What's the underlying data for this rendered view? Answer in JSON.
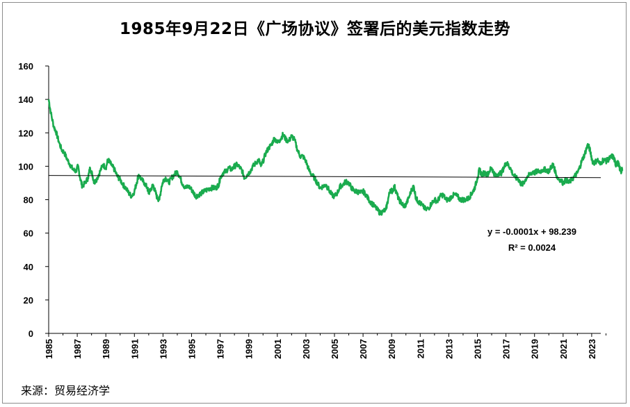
{
  "title": "1985年9月22日《广场协议》签署后的美元指数走势",
  "source": "来源：贸易经济学",
  "colors": {
    "series": "#1aab4e",
    "trend": "#000000",
    "axis": "#000000"
  },
  "chart_data": {
    "type": "line",
    "title": "1985年9月22日《广场协议》签署后的美元指数走势",
    "xlabel": "",
    "ylabel": "",
    "xlim": [
      1985.0,
      2024.7
    ],
    "ylim": [
      0,
      160
    ],
    "y_ticks": [
      0,
      20,
      40,
      60,
      80,
      100,
      120,
      140,
      160
    ],
    "x_ticks": [
      "1985",
      "1987",
      "1989",
      "1991",
      "1993",
      "1995",
      "1997",
      "1999",
      "2001",
      "2003",
      "2005",
      "2007",
      "2009",
      "2011",
      "2013",
      "2015",
      "2017",
      "2019",
      "2021",
      "2023"
    ],
    "grid": false,
    "legend": "none",
    "series": [
      {
        "name": "",
        "points": [
          [
            1985.0,
            140
          ],
          [
            1985.15,
            132
          ],
          [
            1985.35,
            124
          ],
          [
            1985.5,
            121
          ],
          [
            1985.7,
            115
          ],
          [
            1985.9,
            110
          ],
          [
            1986.1,
            108
          ],
          [
            1986.3,
            104
          ],
          [
            1986.5,
            101
          ],
          [
            1986.7,
            98
          ],
          [
            1986.9,
            97
          ],
          [
            1987.05,
            100
          ],
          [
            1987.2,
            93
          ],
          [
            1987.35,
            88
          ],
          [
            1987.55,
            90
          ],
          [
            1987.75,
            93
          ],
          [
            1987.9,
            99
          ],
          [
            1988.05,
            95
          ],
          [
            1988.2,
            90
          ],
          [
            1988.4,
            93
          ],
          [
            1988.6,
            97
          ],
          [
            1988.8,
            101
          ],
          [
            1989.0,
            99
          ],
          [
            1989.15,
            104
          ],
          [
            1989.3,
            102
          ],
          [
            1989.45,
            100
          ],
          [
            1989.6,
            98
          ],
          [
            1989.8,
            94
          ],
          [
            1990.0,
            92
          ],
          [
            1990.2,
            89
          ],
          [
            1990.4,
            87
          ],
          [
            1990.6,
            84
          ],
          [
            1990.8,
            82
          ],
          [
            1991.0,
            85
          ],
          [
            1991.15,
            90
          ],
          [
            1991.3,
            95
          ],
          [
            1991.5,
            92
          ],
          [
            1991.7,
            90
          ],
          [
            1991.9,
            87
          ],
          [
            1992.0,
            84
          ],
          [
            1992.15,
            86
          ],
          [
            1992.3,
            89
          ],
          [
            1992.45,
            85
          ],
          [
            1992.6,
            81
          ],
          [
            1992.75,
            80
          ],
          [
            1992.9,
            88
          ],
          [
            1993.05,
            92
          ],
          [
            1993.2,
            93
          ],
          [
            1993.4,
            90
          ],
          [
            1993.6,
            93
          ],
          [
            1993.8,
            95
          ],
          [
            1994.0,
            97
          ],
          [
            1994.2,
            93
          ],
          [
            1994.4,
            89
          ],
          [
            1994.6,
            87
          ],
          [
            1994.8,
            88
          ],
          [
            1995.0,
            86
          ],
          [
            1995.15,
            84
          ],
          [
            1995.3,
            82
          ],
          [
            1995.5,
            83
          ],
          [
            1995.7,
            84
          ],
          [
            1995.9,
            85
          ],
          [
            1996.1,
            86
          ],
          [
            1996.3,
            87
          ],
          [
            1996.5,
            87
          ],
          [
            1996.7,
            87
          ],
          [
            1996.9,
            89
          ],
          [
            1997.0,
            93
          ],
          [
            1997.2,
            96
          ],
          [
            1997.4,
            97
          ],
          [
            1997.6,
            99
          ],
          [
            1997.8,
            98
          ],
          [
            1998.0,
            100
          ],
          [
            1998.2,
            101
          ],
          [
            1998.4,
            99
          ],
          [
            1998.55,
            97
          ],
          [
            1998.7,
            93
          ],
          [
            1998.9,
            95
          ],
          [
            1999.1,
            97
          ],
          [
            1999.3,
            100
          ],
          [
            1999.5,
            102
          ],
          [
            1999.7,
            104
          ],
          [
            1999.85,
            100
          ],
          [
            2000.0,
            103
          ],
          [
            2000.2,
            108
          ],
          [
            2000.4,
            111
          ],
          [
            2000.6,
            113
          ],
          [
            2000.8,
            117
          ],
          [
            2001.0,
            114
          ],
          [
            2001.2,
            116
          ],
          [
            2001.4,
            119
          ],
          [
            2001.6,
            116
          ],
          [
            2001.8,
            115
          ],
          [
            2002.0,
            118
          ],
          [
            2002.2,
            116
          ],
          [
            2002.4,
            110
          ],
          [
            2002.6,
            106
          ],
          [
            2002.8,
            106
          ],
          [
            2003.0,
            103
          ],
          [
            2003.2,
            98
          ],
          [
            2003.4,
            95
          ],
          [
            2003.6,
            93
          ],
          [
            2003.8,
            90
          ],
          [
            2004.0,
            87
          ],
          [
            2004.2,
            88
          ],
          [
            2004.4,
            89
          ],
          [
            2004.6,
            86
          ],
          [
            2004.8,
            83
          ],
          [
            2005.0,
            82
          ],
          [
            2005.2,
            84
          ],
          [
            2005.4,
            88
          ],
          [
            2005.6,
            89
          ],
          [
            2005.8,
            91
          ],
          [
            2006.0,
            90
          ],
          [
            2006.2,
            87
          ],
          [
            2006.4,
            85
          ],
          [
            2006.6,
            85
          ],
          [
            2006.8,
            84
          ],
          [
            2007.0,
            85
          ],
          [
            2007.2,
            83
          ],
          [
            2007.4,
            80
          ],
          [
            2007.6,
            78
          ],
          [
            2007.8,
            76
          ],
          [
            2008.0,
            74
          ],
          [
            2008.2,
            72
          ],
          [
            2008.4,
            73
          ],
          [
            2008.6,
            74
          ],
          [
            2008.75,
            80
          ],
          [
            2008.9,
            86
          ],
          [
            2009.05,
            85
          ],
          [
            2009.2,
            88
          ],
          [
            2009.35,
            84
          ],
          [
            2009.5,
            80
          ],
          [
            2009.7,
            78
          ],
          [
            2009.85,
            76
          ],
          [
            2010.0,
            77
          ],
          [
            2010.2,
            81
          ],
          [
            2010.4,
            86
          ],
          [
            2010.55,
            88
          ],
          [
            2010.7,
            81
          ],
          [
            2010.85,
            79
          ],
          [
            2011.0,
            78
          ],
          [
            2011.2,
            76
          ],
          [
            2011.4,
            74
          ],
          [
            2011.6,
            75
          ],
          [
            2011.8,
            78
          ],
          [
            2012.0,
            80
          ],
          [
            2012.2,
            79
          ],
          [
            2012.4,
            82
          ],
          [
            2012.6,
            83
          ],
          [
            2012.8,
            80
          ],
          [
            2013.0,
            80
          ],
          [
            2013.2,
            82
          ],
          [
            2013.4,
            83
          ],
          [
            2013.6,
            82
          ],
          [
            2013.8,
            80
          ],
          [
            2014.0,
            80
          ],
          [
            2014.2,
            80
          ],
          [
            2014.4,
            81
          ],
          [
            2014.55,
            83
          ],
          [
            2014.7,
            85
          ],
          [
            2014.85,
            88
          ],
          [
            2015.0,
            93
          ],
          [
            2015.15,
            98
          ],
          [
            2015.3,
            95
          ],
          [
            2015.5,
            96
          ],
          [
            2015.7,
            95
          ],
          [
            2015.9,
            98
          ],
          [
            2016.0,
            99
          ],
          [
            2016.15,
            96
          ],
          [
            2016.3,
            94
          ],
          [
            2016.5,
            96
          ],
          [
            2016.7,
            96
          ],
          [
            2016.85,
            99
          ],
          [
            2017.0,
            102
          ],
          [
            2017.15,
            101
          ],
          [
            2017.3,
            99
          ],
          [
            2017.5,
            95
          ],
          [
            2017.7,
            93
          ],
          [
            2017.9,
            92
          ],
          [
            2018.0,
            90
          ],
          [
            2018.15,
            89
          ],
          [
            2018.3,
            91
          ],
          [
            2018.5,
            94
          ],
          [
            2018.7,
            95
          ],
          [
            2018.9,
            97
          ],
          [
            2019.0,
            96
          ],
          [
            2019.2,
            97
          ],
          [
            2019.4,
            97
          ],
          [
            2019.6,
            98
          ],
          [
            2019.8,
            98
          ],
          [
            2020.0,
            97
          ],
          [
            2020.2,
            100
          ],
          [
            2020.3,
            101
          ],
          [
            2020.45,
            97
          ],
          [
            2020.6,
            93
          ],
          [
            2020.8,
            92
          ],
          [
            2021.0,
            90
          ],
          [
            2021.2,
            92
          ],
          [
            2021.4,
            90
          ],
          [
            2021.6,
            92
          ],
          [
            2021.8,
            94
          ],
          [
            2022.0,
            96
          ],
          [
            2022.15,
            99
          ],
          [
            2022.3,
            103
          ],
          [
            2022.5,
            107
          ],
          [
            2022.65,
            111
          ],
          [
            2022.75,
            113
          ],
          [
            2022.9,
            109
          ],
          [
            2023.05,
            103
          ],
          [
            2023.2,
            102
          ],
          [
            2023.4,
            104
          ],
          [
            2023.6,
            101
          ],
          [
            2023.8,
            104
          ],
          [
            2024.0,
            103
          ],
          [
            2024.15,
            104
          ],
          [
            2024.3,
            105
          ],
          [
            2024.45,
            106
          ],
          [
            2024.55,
            105
          ],
          [
            2024.65,
            102
          ],
          [
            2024.7,
            101
          ],
          [
            2024.85,
            102
          ],
          [
            2024.95,
            99
          ],
          [
            2025.05,
            97
          ],
          [
            2025.15,
            98
          ]
        ]
      }
    ],
    "trendline": {
      "type": "linear",
      "start": [
        1985.0,
        94.5
      ],
      "end": [
        2025.2,
        93.2
      ],
      "equation": "y = -0.0001x + 98.239",
      "r_squared": "R² = 0.0024"
    }
  }
}
